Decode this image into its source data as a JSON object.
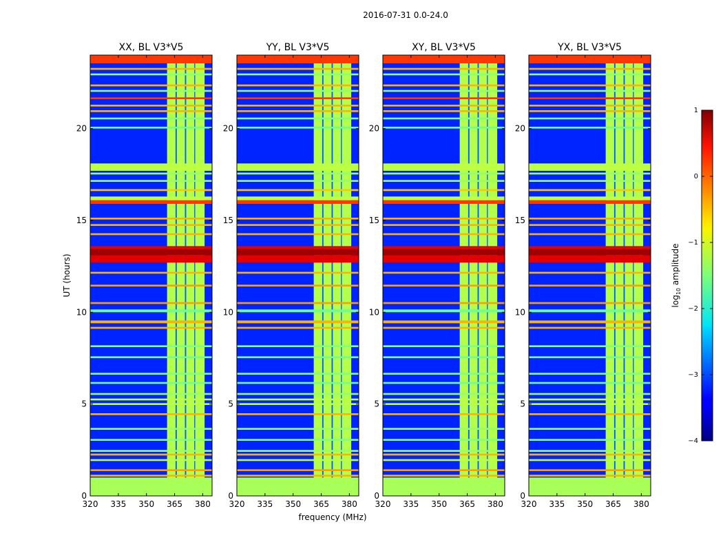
{
  "chart_data": {
    "type": "heatmap",
    "suptitle": "2016-07-31 0.0-24.0",
    "xlabel": "frequency (MHz)",
    "ylabel": "UT (hours)",
    "xlim": [
      320,
      385
    ],
    "ylim": [
      0,
      24
    ],
    "xticks": [
      320,
      335,
      350,
      365,
      380
    ],
    "yticks": [
      0,
      5,
      10,
      15,
      20
    ],
    "panels": [
      {
        "title": "XX, BL V3*V5"
      },
      {
        "title": "YY, BL V3*V5"
      },
      {
        "title": "XY, BL V3*V5"
      },
      {
        "title": "YX, BL V3*V5"
      }
    ],
    "colorbar": {
      "label_prefix": "log",
      "label_sub": "10",
      "label_suffix": " amplitude",
      "vmin": -4,
      "vmax": 1,
      "ticks": [
        1,
        0,
        -1,
        -2,
        -3,
        -4
      ],
      "colormap": "jet"
    },
    "background_level": -3.2,
    "gap_band": {
      "f_start": 361,
      "f_end": 381
    },
    "gap_columns": [
      {
        "f_start": 365.5,
        "f_end": 366.2
      },
      {
        "f_start": 370.5,
        "f_end": 371.2
      },
      {
        "f_start": 375.5,
        "f_end": 376.0
      }
    ],
    "time_blocks": [
      {
        "t_start": 0.0,
        "t_end": 1.0,
        "level": -1.3
      },
      {
        "t_start": 1.05,
        "t_end": 1.15,
        "level": -0.5
      },
      {
        "t_start": 1.35,
        "t_end": 1.45,
        "level": -0.4
      },
      {
        "t_start": 1.9,
        "t_end": 2.0,
        "level": -1.2
      },
      {
        "t_start": 2.2,
        "t_end": 2.3,
        "level": -0.5
      },
      {
        "t_start": 2.4,
        "t_end": 2.5,
        "level": -1.4
      },
      {
        "t_start": 3.0,
        "t_end": 3.1,
        "level": -1.5
      },
      {
        "t_start": 3.6,
        "t_end": 3.7,
        "level": -1.4
      },
      {
        "t_start": 4.4,
        "t_end": 4.5,
        "level": -0.5
      },
      {
        "t_start": 4.95,
        "t_end": 5.05,
        "level": -1.2
      },
      {
        "t_start": 5.2,
        "t_end": 5.3,
        "level": -1.2
      },
      {
        "t_start": 5.5,
        "t_end": 5.6,
        "level": -1.4
      },
      {
        "t_start": 6.1,
        "t_end": 6.2,
        "level": -1.6
      },
      {
        "t_start": 6.6,
        "t_end": 6.7,
        "level": -1.5
      },
      {
        "t_start": 7.5,
        "t_end": 7.6,
        "level": -1.6
      },
      {
        "t_start": 8.1,
        "t_end": 8.2,
        "level": -1.5
      },
      {
        "t_start": 9.1,
        "t_end": 9.2,
        "level": -0.5
      },
      {
        "t_start": 9.4,
        "t_end": 9.55,
        "level": -0.5
      },
      {
        "t_start": 10.0,
        "t_end": 10.15,
        "level": -1.6
      },
      {
        "t_start": 10.45,
        "t_end": 10.55,
        "level": -0.4
      },
      {
        "t_start": 11.4,
        "t_end": 11.5,
        "level": -0.4
      },
      {
        "t_start": 12.1,
        "t_end": 12.2,
        "level": -0.5
      },
      {
        "t_start": 12.7,
        "t_end": 13.1,
        "level": 0.5
      },
      {
        "t_start": 13.1,
        "t_end": 13.45,
        "level": 0.85
      },
      {
        "t_start": 13.45,
        "t_end": 13.6,
        "level": 0.5
      },
      {
        "t_start": 14.2,
        "t_end": 14.3,
        "level": -0.5
      },
      {
        "t_start": 14.7,
        "t_end": 14.8,
        "level": -0.5
      },
      {
        "t_start": 15.05,
        "t_end": 15.15,
        "level": -0.5
      },
      {
        "t_start": 15.9,
        "t_end": 16.1,
        "level": 0.1
      },
      {
        "t_start": 16.1,
        "t_end": 16.3,
        "level": -1.2
      },
      {
        "t_start": 16.6,
        "t_end": 16.7,
        "level": -0.6
      },
      {
        "t_start": 17.1,
        "t_end": 17.2,
        "level": -1.4
      },
      {
        "t_start": 17.5,
        "t_end": 17.6,
        "level": -1.4
      },
      {
        "t_start": 17.7,
        "t_end": 18.1,
        "level": -1.2
      },
      {
        "t_start": 20.0,
        "t_end": 20.1,
        "level": -1.6
      },
      {
        "t_start": 20.5,
        "t_end": 20.6,
        "level": -1.5
      },
      {
        "t_start": 20.9,
        "t_end": 21.0,
        "level": -0.5
      },
      {
        "t_start": 21.2,
        "t_end": 21.3,
        "level": -0.5
      },
      {
        "t_start": 21.6,
        "t_end": 21.7,
        "level": 0.1
      },
      {
        "t_start": 22.0,
        "t_end": 22.1,
        "level": -1.4
      },
      {
        "t_start": 22.3,
        "t_end": 22.4,
        "level": -0.5
      },
      {
        "t_start": 22.9,
        "t_end": 23.0,
        "level": -1.4
      },
      {
        "t_start": 23.2,
        "t_end": 23.3,
        "level": -0.5
      },
      {
        "t_start": 23.55,
        "t_end": 24.0,
        "level": 0.1
      }
    ]
  }
}
